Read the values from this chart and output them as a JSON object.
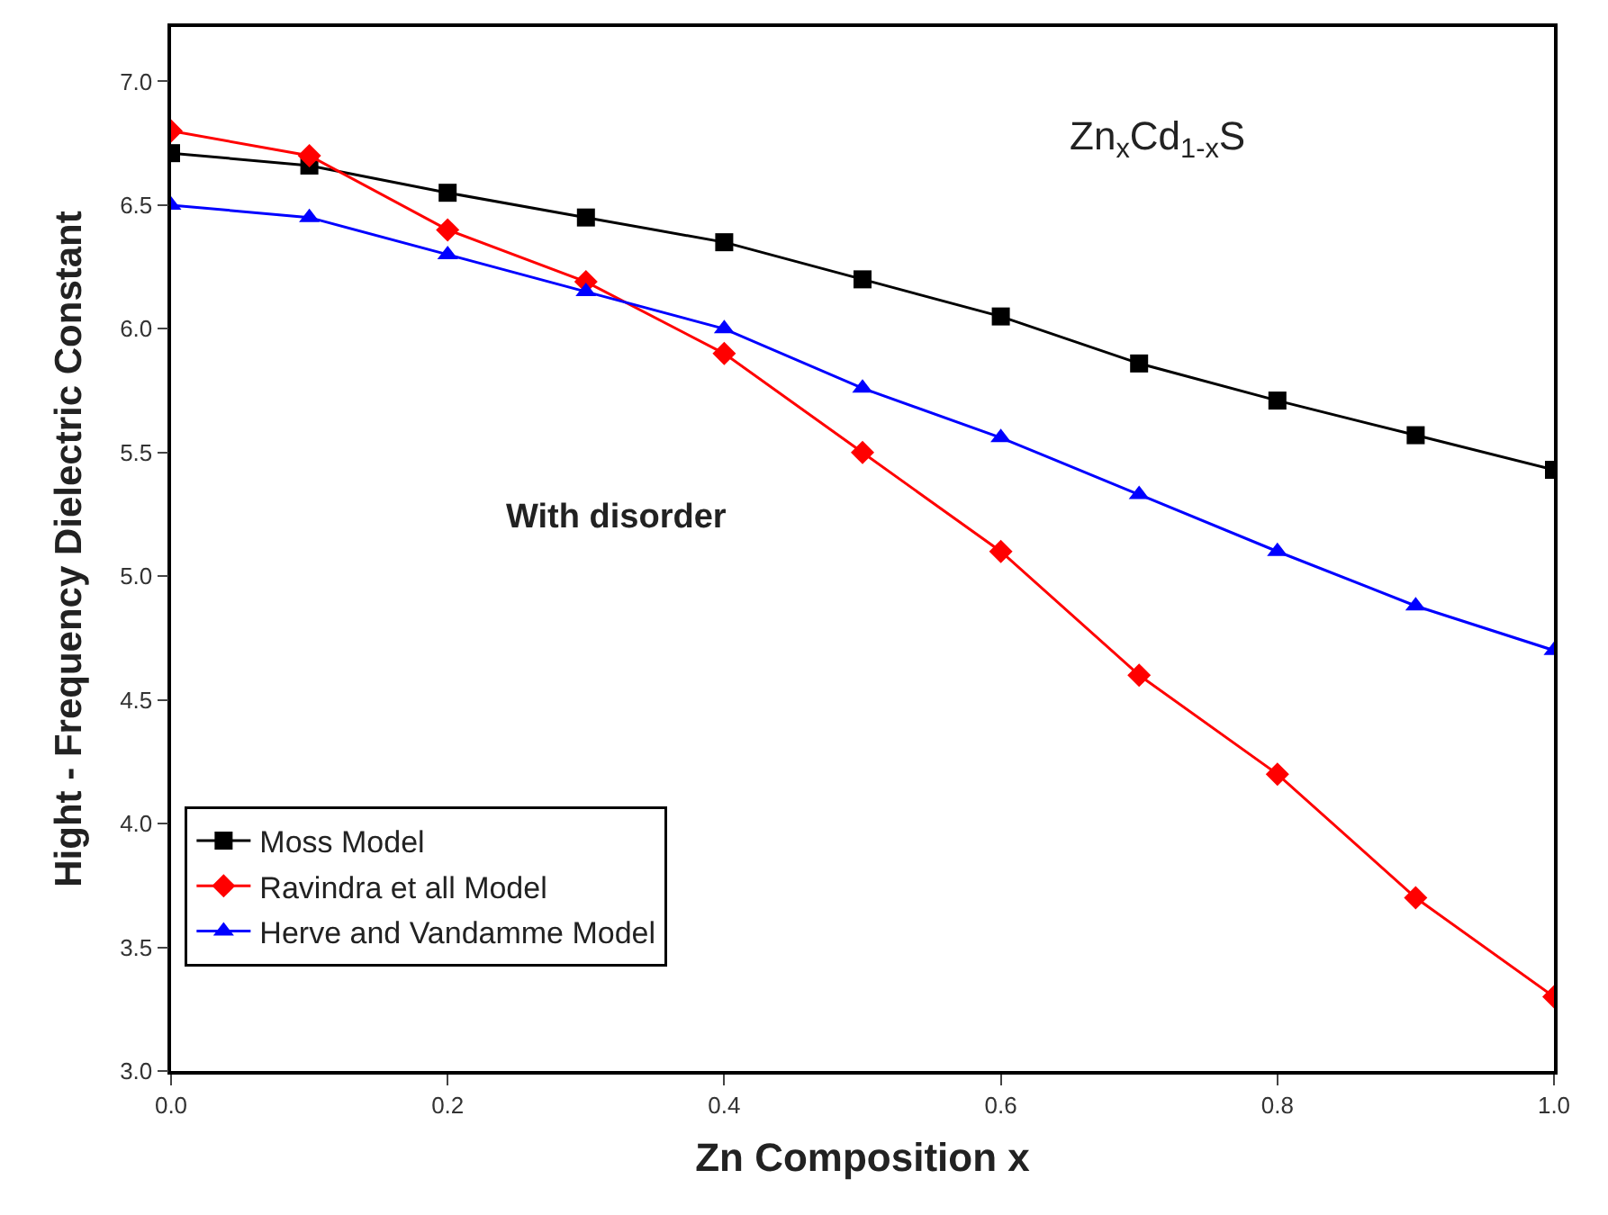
{
  "chart_data": {
    "type": "line",
    "xlabel": "Zn Composition x",
    "ylabel": "Hight - Frequency Dielectric Constant",
    "x": [
      0,
      0.1,
      0.2,
      0.3,
      0.4,
      0.5,
      0.6,
      0.7,
      0.8,
      0.9,
      1.0
    ],
    "series": [
      {
        "name": "Moss Model",
        "color": "#000000",
        "marker": "square",
        "values": [
          6.71,
          6.66,
          6.55,
          6.45,
          6.35,
          6.2,
          6.05,
          5.86,
          5.71,
          5.57,
          5.43
        ]
      },
      {
        "name": "Ravindra et all Model",
        "color": "#ff0000",
        "marker": "diamond",
        "values": [
          6.8,
          6.7,
          6.4,
          6.19,
          5.9,
          5.5,
          5.1,
          4.6,
          4.2,
          3.7,
          3.3
        ]
      },
      {
        "name": "Herve and Vandamme Model",
        "color": "#0000ff",
        "marker": "triangle",
        "values": [
          6.5,
          6.45,
          6.3,
          6.15,
          6.0,
          5.76,
          5.56,
          5.33,
          5.1,
          4.88,
          4.7
        ]
      }
    ],
    "xlim": [
      0,
      1
    ],
    "ylim": [
      3.0,
      7.22
    ],
    "xticks": [
      {
        "value": 0,
        "label": "0.0"
      },
      {
        "value": 0.2,
        "label": "0.2"
      },
      {
        "value": 0.4,
        "label": "0.4"
      },
      {
        "value": 0.6,
        "label": "0.6"
      },
      {
        "value": 0.8,
        "label": "0.8"
      },
      {
        "value": 1.0,
        "label": "1.0"
      }
    ],
    "yticks": [
      {
        "value": 3.0,
        "label": "3.0"
      },
      {
        "value": 3.5,
        "label": "3.5"
      },
      {
        "value": 4.0,
        "label": "4.0"
      },
      {
        "value": 4.5,
        "label": "4.5"
      },
      {
        "value": 5.0,
        "label": "5.0"
      },
      {
        "value": 5.5,
        "label": "5.5"
      },
      {
        "value": 6.0,
        "label": "6.0"
      },
      {
        "value": 6.5,
        "label": "6.5"
      },
      {
        "value": 7.0,
        "label": "7.0"
      }
    ],
    "annotations": [
      "Zn$_{x}$Cd$_{1-x}$S",
      "With disorder"
    ],
    "legend": "bottom left",
    "line_style": "solid"
  }
}
